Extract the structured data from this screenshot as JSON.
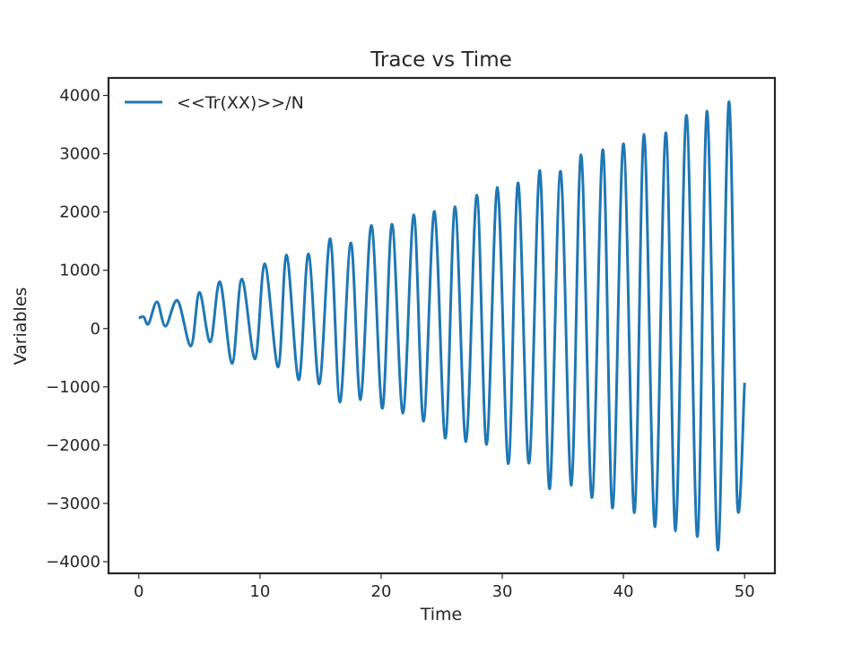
{
  "chart_data": {
    "type": "line",
    "title": "Trace vs Time",
    "xlabel": "Time",
    "ylabel": "Variables",
    "xlim": [
      -2.5,
      52.5
    ],
    "ylim": [
      -4200,
      4300
    ],
    "xticks": [
      0,
      10,
      20,
      30,
      40,
      50
    ],
    "xtick_labels": [
      "0",
      "10",
      "20",
      "30",
      "40",
      "50"
    ],
    "yticks": [
      4000,
      3000,
      2000,
      1000,
      0,
      -1000,
      -2000,
      -3000,
      -4000
    ],
    "ytick_labels": [
      "4000",
      "3000",
      "2000",
      "1000",
      "0",
      "−1000",
      "−2000",
      "−3000",
      "−4000"
    ],
    "grid": false,
    "legend_position": "top-left",
    "series": [
      {
        "name": "<<Tr(XX)>>/N",
        "color": "#1f77b4",
        "x": [
          0,
          0.4,
          0.8,
          1.5,
          2.2,
          3.2,
          4.3,
          5.0,
          5.9,
          6.7,
          7.7,
          8.5,
          9.6,
          10.4,
          11.5,
          12.2,
          13.2,
          14.0,
          14.9,
          15.8,
          16.6,
          17.5,
          18.3,
          19.2,
          20.1,
          20.9,
          21.8,
          22.7,
          23.5,
          24.4,
          25.3,
          26.1,
          27.0,
          27.9,
          28.7,
          29.6,
          30.5,
          31.3,
          32.2,
          33.1,
          33.9,
          34.8,
          35.7,
          36.5,
          37.4,
          38.3,
          39.1,
          40.0,
          40.9,
          41.7,
          42.6,
          43.5,
          44.3,
          45.2,
          46.1,
          46.9,
          47.8,
          48.7,
          49.4,
          50.0
        ],
        "y": [
          180,
          200,
          80,
          460,
          40,
          480,
          -300,
          620,
          -230,
          800,
          -600,
          850,
          -520,
          1110,
          -660,
          1260,
          -880,
          1280,
          -950,
          1540,
          -1260,
          1470,
          -1220,
          1770,
          -1370,
          1790,
          -1450,
          1950,
          -1590,
          2010,
          -1880,
          2090,
          -1940,
          2290,
          -1990,
          2420,
          -2320,
          2500,
          -2310,
          2710,
          -2750,
          2700,
          -2690,
          2980,
          -2900,
          3070,
          -3080,
          3170,
          -3160,
          3330,
          -3400,
          3360,
          -3470,
          3660,
          -3570,
          3730,
          -3800,
          3890,
          -3000,
          -930
        ]
      }
    ]
  }
}
